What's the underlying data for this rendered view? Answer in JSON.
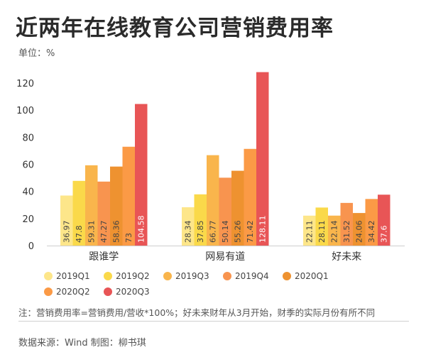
{
  "title": "近两年在线教育公司营销费用率",
  "unit_label": "单位：%",
  "note": "注：营销费用率=营销费用/营收*100%；好未来财年从3月开始，财季的实际月份有所不同",
  "source": "数据来源：Wind 制图：柳书琪",
  "chart_data": {
    "type": "bar",
    "categories": [
      "跟谁学",
      "网易有道",
      "好未来"
    ],
    "series": [
      {
        "name": "2019Q1",
        "color": "#fde68a",
        "values": [
          36.97,
          28.34,
          22.11
        ]
      },
      {
        "name": "2019Q2",
        "color": "#fad94a",
        "values": [
          47.8,
          37.85,
          28.11
        ]
      },
      {
        "name": "2019Q3",
        "color": "#f9b54c",
        "values": [
          59.31,
          66.77,
          22.14
        ]
      },
      {
        "name": "2019Q4",
        "color": "#f8944f",
        "values": [
          47.27,
          50.14,
          31.52
        ]
      },
      {
        "name": "2020Q1",
        "color": "#ee9230",
        "values": [
          58.36,
          55.26,
          24.06
        ]
      },
      {
        "name": "2020Q2",
        "color": "#fb9a46",
        "values": [
          73,
          71.42,
          34.42
        ]
      },
      {
        "name": "2020Q3",
        "color": "#e85556",
        "values": [
          104.58,
          128.11,
          37.6
        ]
      }
    ],
    "yticks": [
      0,
      20,
      40,
      60,
      80,
      100,
      120
    ],
    "ylim": [
      0,
      130
    ],
    "grid": false,
    "legend_position": "bottom"
  }
}
